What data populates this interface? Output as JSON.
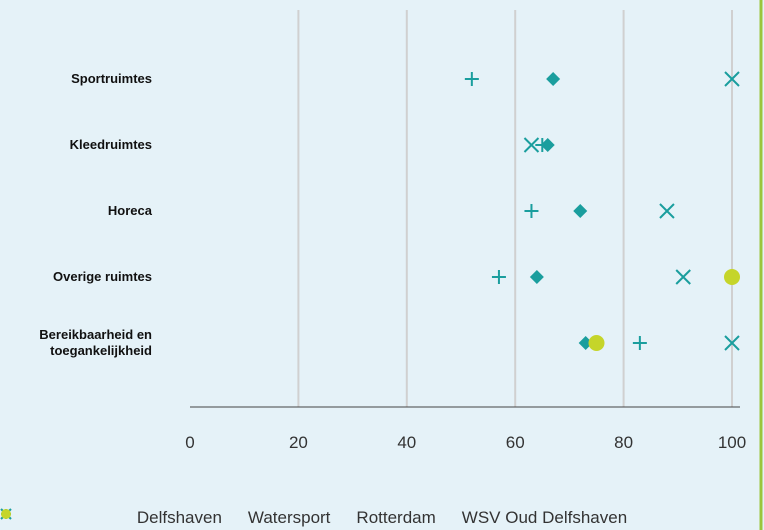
{
  "chart_data": {
    "type": "dot",
    "categories": [
      "Sportruimtes",
      "Kleedruimtes",
      "Horeca",
      "Overige ruimtes",
      "Bereikbaarheid en toegankelijkheid"
    ],
    "series": [
      {
        "name": "Delfshaven",
        "color": "#1a9e9e",
        "marker": "plus",
        "values": [
          52,
          65,
          63,
          57,
          83
        ]
      },
      {
        "name": "Watersport",
        "color": "#1a9e9e",
        "marker": "x",
        "values": [
          100,
          63,
          88,
          91,
          100
        ]
      },
      {
        "name": "Rotterdam",
        "color": "#1a9e9e",
        "marker": "diamond",
        "values": [
          67,
          66,
          72,
          64,
          73
        ]
      },
      {
        "name": "WSV Oud Delfshaven",
        "color": "#c5d52a",
        "marker": "circle",
        "values": [
          null,
          null,
          null,
          100,
          75
        ]
      }
    ],
    "xlim": [
      0,
      100
    ],
    "xticks": [
      0,
      20,
      40,
      60,
      80,
      100
    ],
    "grid": true,
    "legend": "bottom"
  }
}
